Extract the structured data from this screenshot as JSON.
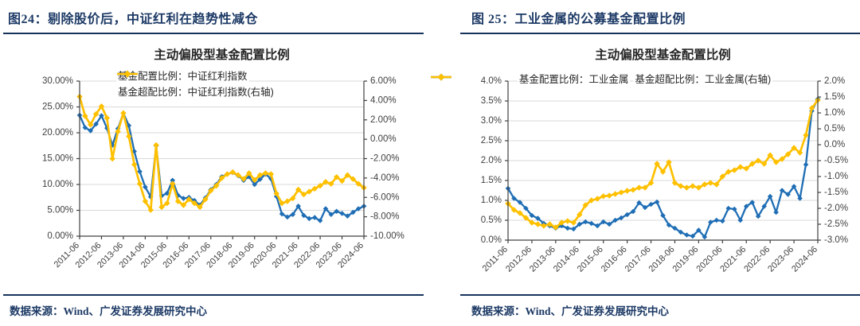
{
  "accent_colors": {
    "series_blue": "#1f6eb5",
    "series_yellow": "#ffc000",
    "header_navy": "#1d3a66",
    "rule_navy": "#16335c",
    "grid_gray": "#d9d9d9",
    "axis_gray": "#404040",
    "label_gray": "#404040",
    "title_gray": "#262626"
  },
  "figures": [
    {
      "header": "图24：剔除股价后，中证红利在趋势性减仓",
      "source": "数据来源：Wind、广发证券发展研究中心",
      "legend": [
        {
          "label": "基金配置比例：中证红利指数",
          "color": "#1f6eb5"
        },
        {
          "label": "基金超配比例：中证红利指数(右轴)",
          "color": "#ffc000"
        }
      ]
    },
    {
      "header": "图 25：工业金属的公募基金配置比例",
      "source": "数据来源：Wind、广发证券发展研究中心",
      "legend": [
        {
          "label": "基金配置比例：工业金属",
          "color": "#1f6eb5"
        },
        {
          "label": "基金超配比例：工业金属(右轴)",
          "color": "#ffc000"
        }
      ]
    }
  ],
  "chart_data": [
    {
      "type": "line",
      "title": "主动偏股型基金配置比例",
      "legend_position": "top-left-stacked",
      "grid": true,
      "x": [
        "2011-06",
        "2011-09",
        "2011-12",
        "2012-03",
        "2012-06",
        "2012-09",
        "2012-12",
        "2013-03",
        "2013-06",
        "2013-09",
        "2013-12",
        "2014-03",
        "2014-06",
        "2014-09",
        "2014-12",
        "2015-03",
        "2015-06",
        "2015-09",
        "2015-12",
        "2016-03",
        "2016-06",
        "2016-09",
        "2016-12",
        "2017-03",
        "2017-06",
        "2017-09",
        "2017-12",
        "2018-03",
        "2018-06",
        "2018-09",
        "2018-12",
        "2019-03",
        "2019-06",
        "2019-09",
        "2019-12",
        "2020-03",
        "2020-06",
        "2020-09",
        "2020-12",
        "2021-03",
        "2021-06",
        "2021-09",
        "2021-12",
        "2022-03",
        "2022-06",
        "2022-09",
        "2022-12",
        "2023-03",
        "2023-06",
        "2023-09",
        "2023-12",
        "2024-03",
        "2024-06"
      ],
      "x_tick_labels": [
        "2011-06",
        "2012-06",
        "2013-06",
        "2014-06",
        "2015-06",
        "2016-06",
        "2017-06",
        "2018-06",
        "2019-06",
        "2020-06",
        "2021-06",
        "2022-06",
        "2023-06",
        "2024-06"
      ],
      "left_axis": {
        "min": 0,
        "max": 30,
        "tick_labels": [
          "30.00%",
          "25.00%",
          "20.00%",
          "15.00%",
          "10.00%",
          "5.00%",
          "0.00%"
        ]
      },
      "right_axis": {
        "min": -10,
        "max": 6,
        "tick_labels": [
          "6.00%",
          "4.00%",
          "2.00%",
          "0.00%",
          "-2.00%",
          "-4.00%",
          "-6.00%",
          "-8.00%",
          "-10.00%"
        ]
      },
      "series": [
        {
          "name": "基金配置比例：中证红利指数",
          "axis": "left",
          "color": "#1f6eb5",
          "values": [
            23.4,
            21.0,
            20.4,
            21.7,
            23.3,
            20.9,
            17.6,
            20.8,
            23.8,
            21.4,
            16.4,
            12.5,
            9.5,
            7.6,
            17.5,
            7.8,
            8.3,
            10.8,
            7.9,
            7.3,
            7.5,
            6.9,
            6.0,
            7.4,
            9.0,
            10.0,
            11.5,
            12.0,
            12.3,
            11.7,
            10.8,
            11.5,
            10.0,
            11.0,
            12.0,
            11.1,
            7.7,
            4.3,
            3.7,
            4.2,
            5.8,
            4.0,
            3.4,
            3.6,
            3.0,
            5.3,
            4.2,
            4.8,
            4.4,
            3.9,
            4.6,
            5.3,
            5.8
          ]
        },
        {
          "name": "基金超配比例：中证红利指数(右轴)",
          "axis": "right",
          "color": "#ffc000",
          "values": [
            4.4,
            2.4,
            1.5,
            2.6,
            3.4,
            2.2,
            -2.0,
            0.8,
            2.7,
            0.3,
            -2.6,
            -4.6,
            -6.4,
            -7.3,
            -0.6,
            -7.0,
            -6.6,
            -4.6,
            -6.4,
            -6.8,
            -6.2,
            -6.6,
            -7.0,
            -6.2,
            -5.3,
            -4.8,
            -4.0,
            -3.6,
            -3.4,
            -3.7,
            -4.1,
            -3.5,
            -4.2,
            -3.7,
            -3.5,
            -3.6,
            -5.6,
            -6.6,
            -6.4,
            -6.1,
            -5.2,
            -5.7,
            -5.4,
            -5.1,
            -4.8,
            -4.4,
            -4.6,
            -3.9,
            -4.3,
            -3.7,
            -4.1,
            -4.6,
            -5.0
          ]
        }
      ]
    },
    {
      "type": "line",
      "title": "主动偏股型基金配置比例",
      "legend_position": "top-row",
      "grid": true,
      "x": [
        "2011-06",
        "2011-09",
        "2011-12",
        "2012-03",
        "2012-06",
        "2012-09",
        "2012-12",
        "2013-03",
        "2013-06",
        "2013-09",
        "2013-12",
        "2014-03",
        "2014-06",
        "2014-09",
        "2014-12",
        "2015-03",
        "2015-06",
        "2015-09",
        "2015-12",
        "2016-03",
        "2016-06",
        "2016-09",
        "2016-12",
        "2017-03",
        "2017-06",
        "2017-09",
        "2017-12",
        "2018-03",
        "2018-06",
        "2018-09",
        "2018-12",
        "2019-03",
        "2019-06",
        "2019-09",
        "2019-12",
        "2020-03",
        "2020-06",
        "2020-09",
        "2020-12",
        "2021-03",
        "2021-06",
        "2021-09",
        "2021-12",
        "2022-03",
        "2022-06",
        "2022-09",
        "2022-12",
        "2023-03",
        "2023-06",
        "2023-09",
        "2023-12",
        "2024-03",
        "2024-06"
      ],
      "x_tick_labels": [
        "2011-06",
        "2012-06",
        "2013-06",
        "2014-06",
        "2015-06",
        "2016-06",
        "2017-06",
        "2018-06",
        "2019-06",
        "2020-06",
        "2021-06",
        "2022-06",
        "2023-06",
        "2024-06"
      ],
      "left_axis": {
        "min": 0,
        "max": 4,
        "tick_labels": [
          "4.0%",
          "3.5%",
          "3.0%",
          "2.5%",
          "2.0%",
          "1.5%",
          "1.0%",
          "0.5%",
          "0.0%"
        ]
      },
      "right_axis": {
        "min": -3,
        "max": 2,
        "tick_labels": [
          "2.0%",
          "1.5%",
          "1.0%",
          "0.5%",
          "0.0%",
          "-0.5%",
          "-1.0%",
          "-1.5%",
          "-2.0%",
          "-2.5%",
          "-3.0%"
        ]
      },
      "series": [
        {
          "name": "基金配置比例：工业金属",
          "axis": "left",
          "color": "#1f6eb5",
          "values": [
            1.3,
            1.05,
            0.95,
            0.8,
            0.62,
            0.55,
            0.42,
            0.36,
            0.3,
            0.36,
            0.3,
            0.28,
            0.4,
            0.46,
            0.42,
            0.36,
            0.46,
            0.4,
            0.5,
            0.56,
            0.64,
            0.72,
            0.94,
            0.82,
            0.9,
            0.96,
            0.62,
            0.38,
            0.3,
            0.2,
            0.13,
            0.1,
            0.25,
            0.08,
            0.45,
            0.5,
            0.48,
            0.8,
            0.78,
            0.5,
            0.85,
            0.95,
            0.6,
            0.85,
            1.1,
            0.7,
            1.25,
            1.15,
            1.35,
            1.05,
            1.9,
            3.25,
            3.55
          ]
        },
        {
          "name": "基金超配比例：工业金属(右轴)",
          "axis": "right",
          "color": "#ffc000",
          "values": [
            -1.85,
            -2.05,
            -2.15,
            -2.3,
            -2.45,
            -2.5,
            -2.55,
            -2.5,
            -2.6,
            -2.45,
            -2.4,
            -2.45,
            -2.2,
            -1.9,
            -1.75,
            -1.7,
            -1.62,
            -1.6,
            -1.55,
            -1.5,
            -1.45,
            -1.42,
            -1.35,
            -1.35,
            -1.2,
            -0.6,
            -0.85,
            -0.55,
            -1.2,
            -1.3,
            -1.35,
            -1.3,
            -1.35,
            -1.25,
            -1.2,
            -1.25,
            -1.0,
            -0.85,
            -0.8,
            -0.7,
            -0.75,
            -0.6,
            -0.5,
            -0.6,
            -0.33,
            -0.55,
            -0.45,
            -0.3,
            -0.1,
            -0.25,
            0.3,
            1.15,
            1.4
          ]
        }
      ]
    }
  ]
}
